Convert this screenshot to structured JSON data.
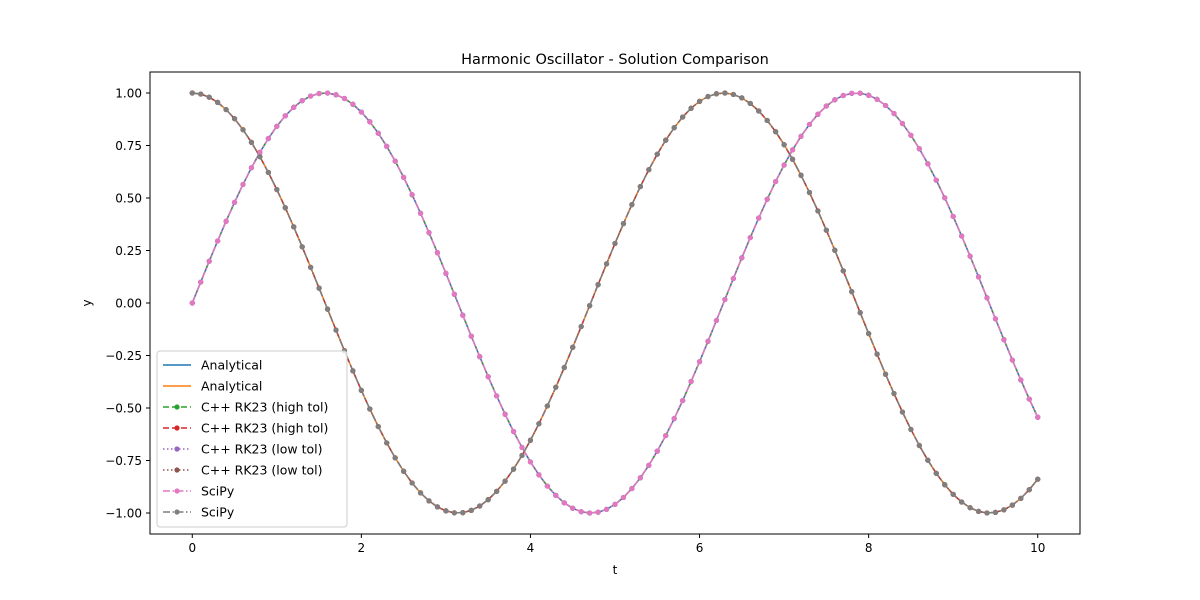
{
  "chart_data": {
    "type": "line",
    "title": "Harmonic Oscillator - Solution Comparison",
    "xlabel": "t",
    "ylabel": "y",
    "xlim": [
      -0.5,
      10.5
    ],
    "ylim": [
      -1.1,
      1.1
    ],
    "xticks": [
      0,
      2,
      4,
      6,
      8,
      10
    ],
    "xtick_labels": [
      "0",
      "2",
      "4",
      "6",
      "8",
      "10"
    ],
    "yticks": [
      -1.0,
      -0.75,
      -0.5,
      -0.25,
      0.0,
      0.25,
      0.5,
      0.75,
      1.0
    ],
    "ytick_labels": [
      "−1.00",
      "−0.75",
      "−0.50",
      "−0.25",
      "0.00",
      "0.25",
      "0.50",
      "0.75",
      "1.00"
    ],
    "grid": false,
    "legend": {
      "location": "lower-left"
    },
    "x": [
      0,
      0.1,
      0.2,
      0.3,
      0.4,
      0.5,
      0.6,
      0.7,
      0.8,
      0.9,
      1.0,
      1.1,
      1.2,
      1.3,
      1.4,
      1.5,
      1.6,
      1.7,
      1.8,
      1.9,
      2.0,
      2.1,
      2.2,
      2.3,
      2.4,
      2.5,
      2.6,
      2.7,
      2.8,
      2.9,
      3.0,
      3.1,
      3.2,
      3.3,
      3.4,
      3.5,
      3.6,
      3.7,
      3.8,
      3.9,
      4.0,
      4.1,
      4.2,
      4.3,
      4.4,
      4.5,
      4.6,
      4.7,
      4.8,
      4.9,
      5.0,
      5.1,
      5.2,
      5.3,
      5.4,
      5.5,
      5.6,
      5.7,
      5.8,
      5.9,
      6.0,
      6.1,
      6.2,
      6.3,
      6.4,
      6.5,
      6.6,
      6.7,
      6.8,
      6.9,
      7.0,
      7.1,
      7.2,
      7.3,
      7.4,
      7.5,
      7.6,
      7.7,
      7.8,
      7.9,
      8.0,
      8.1,
      8.2,
      8.3,
      8.4,
      8.5,
      8.6,
      8.7,
      8.8,
      8.9,
      9.0,
      9.1,
      9.2,
      9.3,
      9.4,
      9.5,
      9.6,
      9.7,
      9.8,
      9.9,
      10.0
    ],
    "series": [
      {
        "name": "Analytical",
        "color": "#1f77b4",
        "style": "solid",
        "marker": "none",
        "curve": "sin",
        "y": [
          0.0,
          0.0998,
          0.1987,
          0.2955,
          0.3894,
          0.4794,
          0.5646,
          0.6442,
          0.7174,
          0.7833,
          0.8415,
          0.8912,
          0.932,
          0.9636,
          0.9854,
          0.9975,
          0.9996,
          0.9917,
          0.9738,
          0.9463,
          0.9093,
          0.8632,
          0.8085,
          0.7457,
          0.6755,
          0.5985,
          0.5155,
          0.4274,
          0.335,
          0.2392,
          0.1411,
          0.0416,
          -0.0584,
          -0.1577,
          -0.2555,
          -0.3508,
          -0.4425,
          -0.5298,
          -0.6119,
          -0.6878,
          -0.7568,
          -0.8183,
          -0.8716,
          -0.9162,
          -0.9516,
          -0.9775,
          -0.9937,
          -0.9999,
          -0.9962,
          -0.9825,
          -0.9589,
          -0.9258,
          -0.8835,
          -0.8323,
          -0.7728,
          -0.7055,
          -0.6313,
          -0.5507,
          -0.4646,
          -0.3739,
          -0.2794,
          -0.1822,
          -0.0831,
          0.0168,
          0.1165,
          0.2151,
          0.3115,
          0.4048,
          0.4941,
          0.5784,
          0.657,
          0.729,
          0.7937,
          0.8504,
          0.8987,
          0.938,
          0.9679,
          0.9882,
          0.9985,
          0.999,
          0.9894,
          0.9699,
          0.9407,
          0.9022,
          0.8546,
          0.7985,
          0.7344,
          0.663,
          0.5849,
          0.501,
          0.4121,
          0.319,
          0.2229,
          0.1245,
          0.0248,
          -0.0752,
          -0.1743,
          -0.2718,
          -0.3665,
          -0.4575,
          -0.544
        ]
      },
      {
        "name": "Analytical",
        "color": "#ff7f0e",
        "style": "solid",
        "marker": "none",
        "curve": "cos",
        "y": [
          1.0,
          0.995,
          0.9801,
          0.9553,
          0.9211,
          0.8776,
          0.8253,
          0.7648,
          0.6967,
          0.6216,
          0.5403,
          0.4536,
          0.3624,
          0.2675,
          0.17,
          0.0707,
          -0.0292,
          -0.1288,
          -0.2272,
          -0.3233,
          -0.4161,
          -0.5048,
          -0.5885,
          -0.6663,
          -0.7374,
          -0.8011,
          -0.8569,
          -0.9041,
          -0.9422,
          -0.971,
          -0.99,
          -0.9991,
          -0.9983,
          -0.9875,
          -0.9668,
          -0.9365,
          -0.8968,
          -0.8481,
          -0.791,
          -0.7259,
          -0.6536,
          -0.5748,
          -0.4903,
          -0.4008,
          -0.3073,
          -0.2108,
          -0.1122,
          -0.0124,
          0.0875,
          0.1865,
          0.2837,
          0.378,
          0.4685,
          0.5544,
          0.6347,
          0.7087,
          0.7756,
          0.8347,
          0.8855,
          0.9275,
          0.9602,
          0.9833,
          0.9965,
          0.9999,
          0.9932,
          0.9766,
          0.9502,
          0.9144,
          0.8694,
          0.8157,
          0.7539,
          0.6845,
          0.6084,
          0.5261,
          0.4385,
          0.3466,
          0.2513,
          0.1534,
          0.054,
          -0.046,
          -0.1455,
          -0.2435,
          -0.3392,
          -0.4314,
          -0.5193,
          -0.602,
          -0.6787,
          -0.7486,
          -0.8111,
          -0.8654,
          -0.9111,
          -0.9477,
          -0.9748,
          -0.9922,
          -0.9997,
          -0.9972,
          -0.9847,
          -0.9624,
          -0.9304,
          -0.889,
          -0.8391
        ]
      },
      {
        "name": "C++ RK23 (high tol)",
        "color": "#2ca02c",
        "style": "dashed",
        "marker": "dot",
        "curve": "sin"
      },
      {
        "name": "C++ RK23 (high tol)",
        "color": "#d62728",
        "style": "dashed",
        "marker": "dot",
        "curve": "cos"
      },
      {
        "name": "C++ RK23 (low tol)",
        "color": "#9467bd",
        "style": "dotted",
        "marker": "dot",
        "curve": "sin"
      },
      {
        "name": "C++ RK23 (low tol)",
        "color": "#8c564b",
        "style": "dotted",
        "marker": "dot",
        "curve": "cos"
      },
      {
        "name": "SciPy",
        "color": "#e377c2",
        "style": "dashdot",
        "marker": "dot",
        "curve": "sin"
      },
      {
        "name": "SciPy",
        "color": "#7f7f7f",
        "style": "dashdot",
        "marker": "dot",
        "curve": "cos"
      }
    ]
  }
}
